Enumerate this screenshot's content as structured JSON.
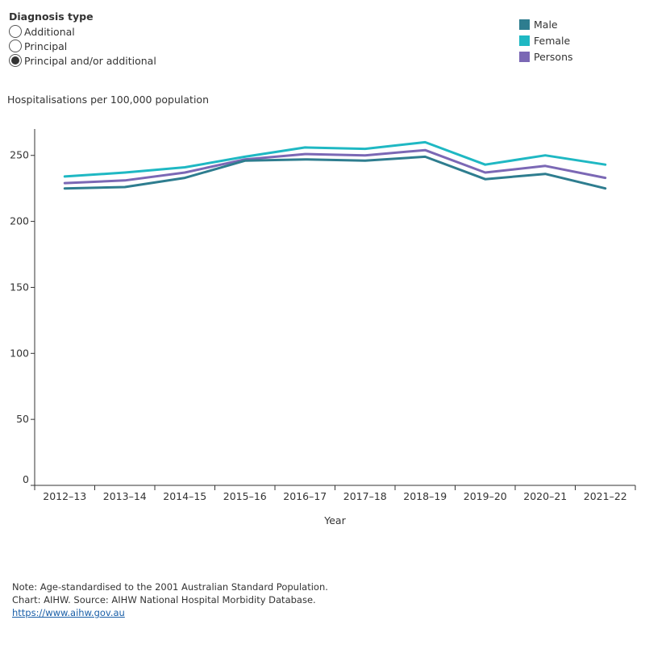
{
  "filter": {
    "title": "Diagnosis type",
    "options": [
      {
        "label": "Additional",
        "selected": false
      },
      {
        "label": "Principal",
        "selected": false
      },
      {
        "label": "Principal and/or additional",
        "selected": true
      }
    ]
  },
  "legend": [
    {
      "label": "Male",
      "color": "#2e7d8f"
    },
    {
      "label": "Female",
      "color": "#1fb8c3"
    },
    {
      "label": "Persons",
      "color": "#7b68b5"
    }
  ],
  "chart_data": {
    "type": "line",
    "title": "",
    "xlabel": "Year",
    "ylabel": "Hospitalisations per 100,000 population",
    "categories": [
      "2012–13",
      "2013–14",
      "2014–15",
      "2015–16",
      "2016–17",
      "2017–18",
      "2018–19",
      "2019–20",
      "2020–21",
      "2021–22"
    ],
    "yticks": [
      0,
      50,
      100,
      150,
      200,
      250
    ],
    "ylim": [
      0,
      270
    ],
    "grid": false,
    "series": [
      {
        "name": "Male",
        "color": "#2e7d8f",
        "values": [
          225,
          226,
          233,
          246,
          247,
          246,
          249,
          232,
          236,
          225
        ]
      },
      {
        "name": "Female",
        "color": "#1fb8c3",
        "values": [
          234,
          237,
          241,
          249,
          256,
          255,
          260,
          243,
          250,
          243
        ]
      },
      {
        "name": "Persons",
        "color": "#7b68b5",
        "values": [
          229,
          231,
          237,
          247,
          251,
          250,
          254,
          237,
          242,
          233
        ]
      }
    ]
  },
  "notes": {
    "line1": "Note: Age-standardised to the 2001 Australian Standard Population.",
    "line2": "Chart: AIHW. Source: AIHW National Hospital Morbidity Database.",
    "link": "https://www.aihw.gov.au"
  }
}
